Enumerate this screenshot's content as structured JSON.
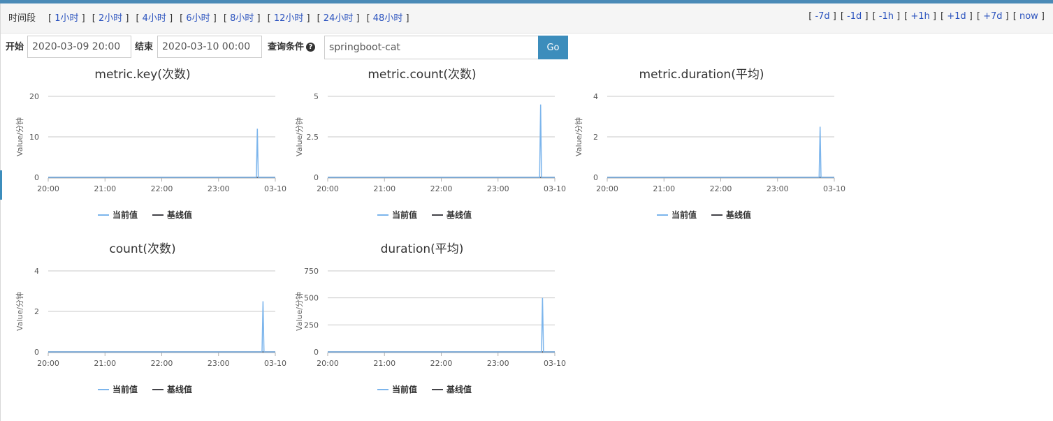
{
  "timebar": {
    "label": "时间段",
    "ranges": [
      "1小时",
      "2小时",
      "4小时",
      "6小时",
      "8小时",
      "12小时",
      "24小时",
      "48小时"
    ],
    "shifts": [
      "-7d",
      "-1d",
      "-1h",
      "+1h",
      "+1d",
      "+7d",
      "now"
    ]
  },
  "query": {
    "start_label": "开始",
    "start_value": "2020-03-09 20:00",
    "end_label": "结束",
    "end_value": "2020-03-10 00:00",
    "condition_label": "查询条件",
    "condition_value": "springboot-cat",
    "go_label": "Go"
  },
  "legend": {
    "current": "当前值",
    "baseline": "基线值"
  },
  "colors": {
    "current": "#7cb5ec",
    "baseline": "#434348",
    "grid": "#c8c8c8",
    "accent": "#3c8dbc"
  },
  "chart_data": [
    {
      "type": "line",
      "title": "metric.key(次数)",
      "ylabel": "Value/分钟",
      "xlabels": [
        "20:00",
        "21:00",
        "22:00",
        "23:00",
        "03-10"
      ],
      "yticks": [
        0,
        10,
        20
      ],
      "ylim": [
        0,
        20
      ],
      "xlim": [
        0,
        240
      ],
      "grid": true,
      "legend_position": "bottom",
      "series": [
        {
          "name": "当前值",
          "points": [
            [
              0,
              0
            ],
            [
              220,
              0
            ],
            [
              221,
              12
            ],
            [
              222,
              0
            ],
            [
              240,
              0
            ]
          ]
        },
        {
          "name": "基线值",
          "points": [
            [
              0,
              0
            ],
            [
              240,
              0
            ]
          ]
        }
      ]
    },
    {
      "type": "line",
      "title": "metric.count(次数)",
      "ylabel": "Value/分钟",
      "xlabels": [
        "20:00",
        "21:00",
        "22:00",
        "23:00",
        "03-10"
      ],
      "yticks": [
        0,
        2.5,
        5
      ],
      "ylim": [
        0,
        5
      ],
      "xlim": [
        0,
        240
      ],
      "grid": true,
      "legend_position": "bottom",
      "series": [
        {
          "name": "当前值",
          "points": [
            [
              0,
              0
            ],
            [
              224,
              0
            ],
            [
              225,
              4.5
            ],
            [
              226,
              0
            ],
            [
              240,
              0
            ]
          ]
        },
        {
          "name": "基线值",
          "points": [
            [
              0,
              0
            ],
            [
              240,
              0
            ]
          ]
        }
      ]
    },
    {
      "type": "line",
      "title": "metric.duration(平均)",
      "ylabel": "Value/分钟",
      "xlabels": [
        "20:00",
        "21:00",
        "22:00",
        "23:00",
        "03-10"
      ],
      "yticks": [
        0,
        2,
        4
      ],
      "ylim": [
        0,
        4
      ],
      "xlim": [
        0,
        240
      ],
      "grid": true,
      "legend_position": "bottom",
      "series": [
        {
          "name": "当前值",
          "points": [
            [
              0,
              0
            ],
            [
              224,
              0
            ],
            [
              225,
              2.5
            ],
            [
              226,
              0
            ],
            [
              240,
              0
            ]
          ]
        },
        {
          "name": "基线值",
          "points": [
            [
              0,
              0
            ],
            [
              240,
              0
            ]
          ]
        }
      ]
    },
    {
      "type": "line",
      "title": "count(次数)",
      "ylabel": "Value/分钟",
      "xlabels": [
        "20:00",
        "21:00",
        "22:00",
        "23:00",
        "03-10"
      ],
      "yticks": [
        0,
        2,
        4
      ],
      "ylim": [
        0,
        4
      ],
      "xlim": [
        0,
        240
      ],
      "grid": true,
      "legend_position": "bottom",
      "series": [
        {
          "name": "当前值",
          "points": [
            [
              0,
              0
            ],
            [
              226,
              0
            ],
            [
              227,
              2.5
            ],
            [
              228,
              0
            ],
            [
              240,
              0
            ]
          ]
        },
        {
          "name": "基线值",
          "points": [
            [
              0,
              0
            ],
            [
              240,
              0
            ]
          ]
        }
      ]
    },
    {
      "type": "line",
      "title": "duration(平均)",
      "ylabel": "Value/分钟",
      "xlabels": [
        "20:00",
        "21:00",
        "22:00",
        "23:00",
        "03-10"
      ],
      "yticks": [
        0,
        250,
        500,
        750
      ],
      "ylim": [
        0,
        750
      ],
      "xlim": [
        0,
        240
      ],
      "grid": true,
      "legend_position": "bottom",
      "series": [
        {
          "name": "当前值",
          "points": [
            [
              0,
              0
            ],
            [
              226,
              0
            ],
            [
              227,
              500
            ],
            [
              228,
              0
            ],
            [
              240,
              0
            ]
          ]
        },
        {
          "name": "基线值",
          "points": [
            [
              0,
              0
            ],
            [
              240,
              0
            ]
          ]
        }
      ]
    }
  ]
}
